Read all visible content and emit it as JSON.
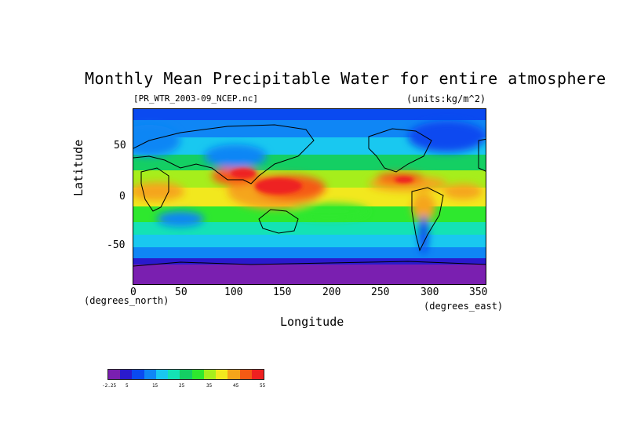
{
  "title": "Monthly Mean Precipitable Water for entire atmosphere",
  "file_label": "[PR_WTR_2003-09_NCEP.nc]",
  "units_label": "(units:kg/m^2)",
  "x_axis": {
    "label": "Longitude",
    "units": "(degrees_east)",
    "ticks": [
      "0",
      "50",
      "100",
      "150",
      "200",
      "250",
      "300",
      "350"
    ]
  },
  "y_axis": {
    "label": "Latitude",
    "units": "(degrees_north)",
    "ticks": [
      "50",
      "0",
      "-50"
    ]
  },
  "colorbar": {
    "labels": [
      "-2.25",
      "5",
      "15",
      "25",
      "35",
      "45",
      "55"
    ],
    "colors": [
      "#7a1fb0",
      "#2a1acd",
      "#0a4af0",
      "#0f86f5",
      "#19c8f0",
      "#14e2b5",
      "#14cf63",
      "#2ee82e",
      "#a6ee1c",
      "#f2e81e",
      "#f5a51a",
      "#f55a14",
      "#ee2020"
    ]
  },
  "chart_data": {
    "type": "heatmap",
    "title": "Monthly Mean Precipitable Water for entire atmosphere",
    "xlabel": "Longitude",
    "ylabel": "Latitude",
    "xlim": [
      0,
      360
    ],
    "ylim": [
      -90,
      90
    ],
    "units": "kg/m^2",
    "color_scale": [
      -2.25,
      5,
      15,
      25,
      35,
      45,
      55
    ],
    "bands": [
      {
        "lat": 80,
        "value": 8
      },
      {
        "lat": 60,
        "value": 13
      },
      {
        "lat": 40,
        "value": 22
      },
      {
        "lat": 20,
        "value": 38
      },
      {
        "lat": 5,
        "value": 48
      },
      {
        "lat": -10,
        "value": 38
      },
      {
        "lat": -30,
        "value": 22
      },
      {
        "lat": -50,
        "value": 12
      },
      {
        "lat": -65,
        "value": 6
      },
      {
        "lat": -80,
        "value": 1
      }
    ]
  }
}
